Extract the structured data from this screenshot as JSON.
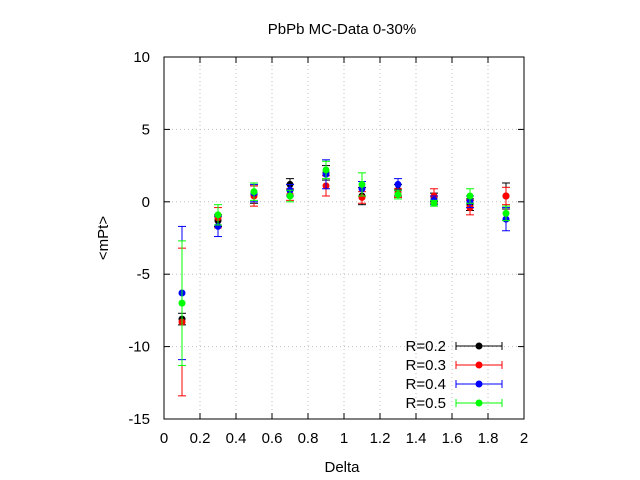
{
  "chart_data": {
    "type": "scatter",
    "title": "PbPb MC-Data 0-30%",
    "xlabel": "Delta",
    "ylabel": "<mPt>",
    "xlim": [
      0,
      2
    ],
    "ylim": [
      -15,
      10
    ],
    "x_ticks": [
      "0",
      "0.2",
      "0.4",
      "0.6",
      "0.8",
      "1",
      "1.2",
      "1.4",
      "1.6",
      "1.8",
      "2"
    ],
    "y_ticks": [
      "10",
      "5",
      "0",
      "-5",
      "-10",
      "-15"
    ],
    "grid": true,
    "legend_position": "bottom-right",
    "series": [
      {
        "name": "R=0.2",
        "color": "#000000",
        "points": [
          {
            "x": 0.1,
            "y": -8.1,
            "err": 0.4
          },
          {
            "x": 0.3,
            "y": -1.3,
            "err": 0.4
          },
          {
            "x": 0.5,
            "y": 0.5,
            "err": 0.6
          },
          {
            "x": 0.7,
            "y": 1.2,
            "err": 0.4
          },
          {
            "x": 0.9,
            "y": 2.0,
            "err": 0.5
          },
          {
            "x": 1.1,
            "y": 0.4,
            "err": 0.6
          },
          {
            "x": 1.3,
            "y": 0.8,
            "err": 0.4
          },
          {
            "x": 1.5,
            "y": 0.3,
            "err": 0.3
          },
          {
            "x": 1.7,
            "y": -0.2,
            "err": 0.4
          },
          {
            "x": 1.9,
            "y": 0.4,
            "err": 0.9
          }
        ]
      },
      {
        "name": "R=0.3",
        "color": "#ff0000",
        "points": [
          {
            "x": 0.1,
            "y": -8.3,
            "err": 5.1
          },
          {
            "x": 0.3,
            "y": -1.1,
            "err": 0.7
          },
          {
            "x": 0.5,
            "y": 0.4,
            "err": 0.7
          },
          {
            "x": 0.7,
            "y": 0.5,
            "err": 0.4
          },
          {
            "x": 0.9,
            "y": 1.1,
            "err": 0.7
          },
          {
            "x": 1.1,
            "y": 0.3,
            "err": 0.4
          },
          {
            "x": 1.3,
            "y": 0.6,
            "err": 0.3
          },
          {
            "x": 1.5,
            "y": 0.4,
            "err": 0.5
          },
          {
            "x": 1.7,
            "y": -0.4,
            "err": 0.5
          },
          {
            "x": 1.9,
            "y": 0.4,
            "err": 0.6
          }
        ]
      },
      {
        "name": "R=0.4",
        "color": "#0000ff",
        "points": [
          {
            "x": 0.1,
            "y": -6.3,
            "err": 4.6
          },
          {
            "x": 0.3,
            "y": -1.7,
            "err": 0.7
          },
          {
            "x": 0.5,
            "y": 0.6,
            "err": 0.6
          },
          {
            "x": 0.7,
            "y": 0.8,
            "err": 0.4
          },
          {
            "x": 0.9,
            "y": 1.9,
            "err": 1.0
          },
          {
            "x": 1.1,
            "y": 0.9,
            "err": 0.5
          },
          {
            "x": 1.3,
            "y": 1.2,
            "err": 0.4
          },
          {
            "x": 1.5,
            "y": 0.1,
            "err": 0.3
          },
          {
            "x": 1.7,
            "y": 0.0,
            "err": 0.4
          },
          {
            "x": 1.9,
            "y": -1.2,
            "err": 0.8
          }
        ]
      },
      {
        "name": "R=0.5",
        "color": "#00ff00",
        "points": [
          {
            "x": 0.1,
            "y": -7.0,
            "err": 4.3
          },
          {
            "x": 0.3,
            "y": -0.9,
            "err": 0.7
          },
          {
            "x": 0.5,
            "y": 0.7,
            "err": 0.6
          },
          {
            "x": 0.7,
            "y": 0.4,
            "err": 0.4
          },
          {
            "x": 0.9,
            "y": 2.2,
            "err": 0.6
          },
          {
            "x": 1.1,
            "y": 1.2,
            "err": 0.8
          },
          {
            "x": 1.3,
            "y": 0.5,
            "err": 0.3
          },
          {
            "x": 1.5,
            "y": -0.1,
            "err": 0.2
          },
          {
            "x": 1.7,
            "y": 0.4,
            "err": 0.5
          },
          {
            "x": 1.9,
            "y": -0.8,
            "err": 0.5
          }
        ]
      }
    ]
  }
}
